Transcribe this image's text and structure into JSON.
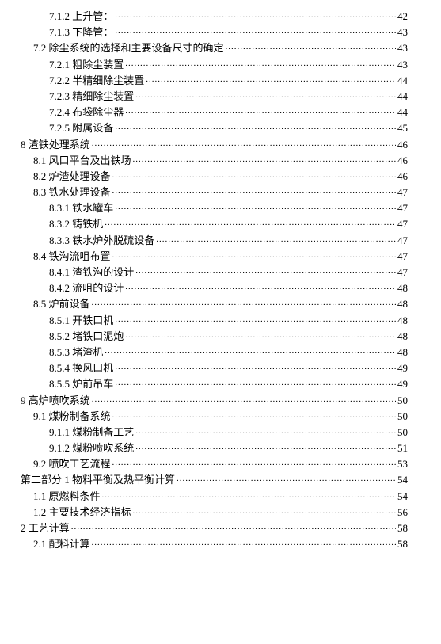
{
  "entries": [
    {
      "label": "7.1.2 上升管：",
      "page": "42",
      "indent": 2
    },
    {
      "label": "7.1.3 下降管：",
      "page": "43",
      "indent": 2
    },
    {
      "label": "7.2  除尘系统的选择和主要设备尺寸的确定",
      "page": "43",
      "indent": 1
    },
    {
      "label": "7.2.1 粗除尘装置",
      "page": "43",
      "indent": 2
    },
    {
      "label": "7.2.2 半精细除尘装置",
      "page": "44",
      "indent": 2
    },
    {
      "label": "7.2.3 精细除尘装置",
      "page": "44",
      "indent": 2
    },
    {
      "label": "7.2.4 布袋除尘器",
      "page": "44",
      "indent": 2
    },
    {
      "label": "7.2.5 附属设备",
      "page": "45",
      "indent": 2
    },
    {
      "label": "8  渣铁处理系统",
      "page": "46",
      "indent": 0
    },
    {
      "label": "8.1 风口平台及出铁场",
      "page": "46",
      "indent": 1
    },
    {
      "label": "8.2 炉渣处理设备",
      "page": "46",
      "indent": 1
    },
    {
      "label": "8.3 铁水处理设备",
      "page": "47",
      "indent": 1
    },
    {
      "label": "8.3.1 铁水罐车",
      "page": "47",
      "indent": 2
    },
    {
      "label": "8.3.2 铸铁机",
      "page": "47",
      "indent": 2
    },
    {
      "label": "8.3.3 铁水炉外脱硫设备",
      "page": "47",
      "indent": 2
    },
    {
      "label": "8.4  铁沟流咀布置",
      "page": "47",
      "indent": 1
    },
    {
      "label": "8.4.1 渣铁沟的设计",
      "page": "47",
      "indent": 2
    },
    {
      "label": "8.4.2 流咀的设计",
      "page": "48",
      "indent": 2
    },
    {
      "label": "8.5 炉前设备",
      "page": "48",
      "indent": 1
    },
    {
      "label": "8.5.1 开铁口机",
      "page": "48",
      "indent": 2
    },
    {
      "label": "8.5.2 堵铁口泥炮",
      "page": "48",
      "indent": 2
    },
    {
      "label": "8.5.3 堵渣机",
      "page": "48",
      "indent": 2
    },
    {
      "label": "8.5.4 换风口机",
      "page": "49",
      "indent": 2
    },
    {
      "label": "8.5.5 炉前吊车",
      "page": "49",
      "indent": 2
    },
    {
      "label": "9  高炉喷吹系统",
      "page": "50",
      "indent": 0
    },
    {
      "label": "9.1 煤粉制备系统",
      "page": "50",
      "indent": 1
    },
    {
      "label": "9.1.1 煤粉制备工艺",
      "page": "50",
      "indent": 2
    },
    {
      "label": "9.1.2 煤粉喷吹系统",
      "page": "51",
      "indent": 2
    },
    {
      "label": "9.2 喷吹工艺流程",
      "page": "53",
      "indent": 1
    },
    {
      "label": "第二部分 1 物料平衡及热平衡计算",
      "page": "54",
      "indent": 0
    },
    {
      "label": "1.1 原燃料条件",
      "page": "54",
      "indent": 1
    },
    {
      "label": "1.2 主要技术经济指标",
      "page": "56",
      "indent": 1
    },
    {
      "label": "2 工艺计算",
      "page": "58",
      "indent": 0
    },
    {
      "label": "2.1 配料计算",
      "page": "58",
      "indent": 1
    }
  ]
}
